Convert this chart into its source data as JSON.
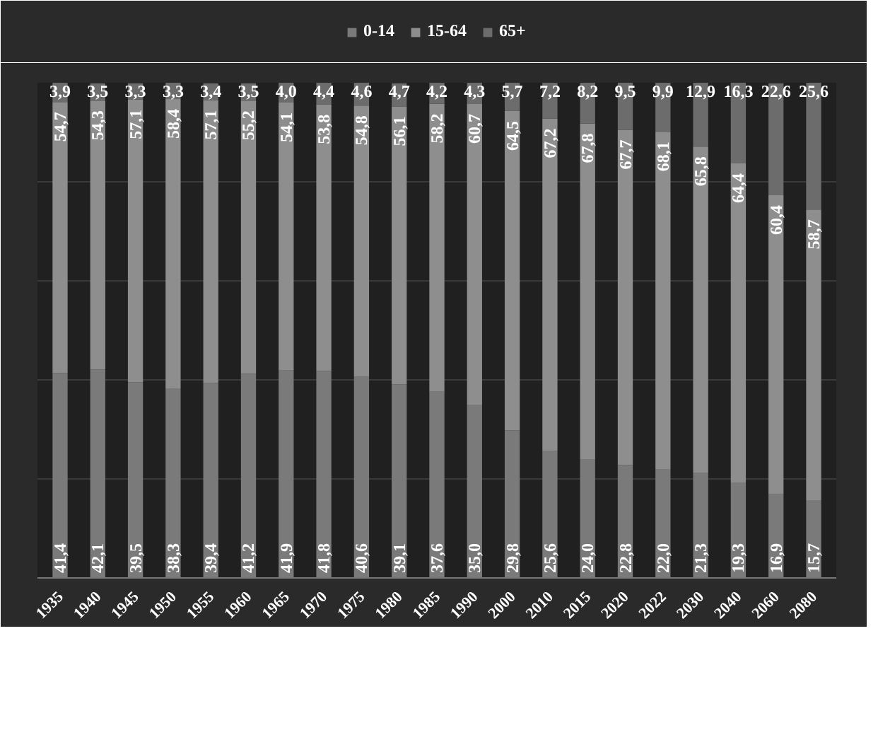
{
  "chart_data": {
    "type": "bar",
    "stacked": true,
    "categories": [
      "1935",
      "1940",
      "1945",
      "1950",
      "1955",
      "1960",
      "1965",
      "1970",
      "1975",
      "1980",
      "1985",
      "1990",
      "2000",
      "2010",
      "2015",
      "2020",
      "2022",
      "2030",
      "2040",
      "2060",
      "2080"
    ],
    "series": [
      {
        "name": "0-14",
        "color": "#7a7a7a",
        "values": [
          41.4,
          42.1,
          39.5,
          38.3,
          39.4,
          41.2,
          41.9,
          41.8,
          40.6,
          39.1,
          37.6,
          35.0,
          29.8,
          25.6,
          24.0,
          22.8,
          22.0,
          21.3,
          19.3,
          16.9,
          15.7
        ],
        "value_labels": [
          "41,4",
          "42,1",
          "39,5",
          "38,3",
          "39,4",
          "41,2",
          "41,9",
          "41,8",
          "40,6",
          "39,1",
          "37,6",
          "35,0",
          "29,8",
          "25,6",
          "24,0",
          "22,8",
          "22,0",
          "21,3",
          "19,3",
          "16,9",
          "15,7"
        ]
      },
      {
        "name": "15-64",
        "color": "#8e8e8e",
        "values": [
          54.7,
          54.3,
          57.1,
          58.4,
          57.1,
          55.2,
          54.1,
          53.8,
          54.8,
          56.1,
          58.2,
          60.7,
          64.5,
          67.2,
          67.8,
          67.7,
          68.1,
          65.8,
          64.4,
          60.4,
          58.7
        ],
        "value_labels": [
          "54,7",
          "54,3",
          "57,1",
          "58,4",
          "57,1",
          "55,2",
          "54,1",
          "53,8",
          "54,8",
          "56,1",
          "58,2",
          "60,7",
          "64,5",
          "67,2",
          "67,8",
          "67,7",
          "68,1",
          "65,8",
          "64,4",
          "60,4",
          "58,7"
        ]
      },
      {
        "name": "65+",
        "color": "#6c6c6c",
        "values": [
          3.9,
          3.5,
          3.3,
          3.3,
          3.4,
          3.5,
          4.0,
          4.4,
          4.6,
          4.7,
          4.2,
          4.3,
          5.7,
          7.2,
          8.2,
          9.5,
          9.9,
          12.9,
          16.3,
          22.6,
          25.6
        ],
        "value_labels": [
          "3,9",
          "3,5",
          "3,3",
          "3,3",
          "3,4",
          "3,5",
          "4,0",
          "4,4",
          "4,6",
          "4,7",
          "4,2",
          "4,3",
          "5,7",
          "7,2",
          "8,2",
          "9,5",
          "9,9",
          "12,9",
          "16,3",
          "22,6",
          "25,6"
        ]
      }
    ],
    "ylim": [
      0,
      100
    ],
    "yticks": [
      {
        "value": 0,
        "label": null
      },
      {
        "value": 20,
        "label": null
      },
      {
        "value": 40,
        "label": null
      },
      {
        "value": 60,
        "label": null
      },
      {
        "value": 80,
        "label": null
      },
      {
        "value": 100,
        "label": null
      }
    ],
    "grid": "y",
    "legend": "top",
    "tick_labels": "x"
  }
}
